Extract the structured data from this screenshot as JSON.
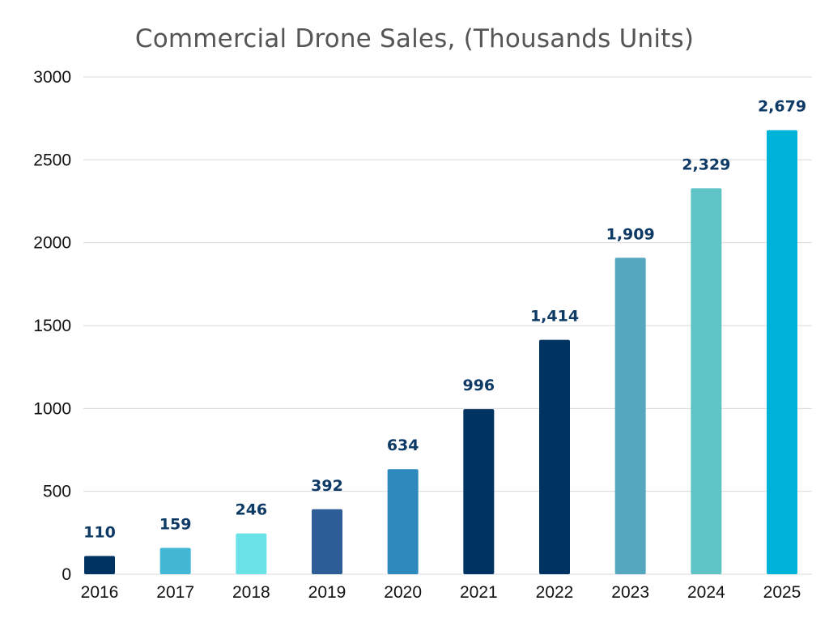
{
  "chart_data": {
    "type": "bar",
    "title": "Commercial Drone Sales, (Thousands Units)",
    "xlabel": "",
    "ylabel": "",
    "categories": [
      "2016",
      "2017",
      "2018",
      "2019",
      "2020",
      "2021",
      "2022",
      "2023",
      "2024",
      "2025"
    ],
    "values": [
      110,
      159,
      246,
      392,
      634,
      996,
      1414,
      1909,
      2329,
      2679
    ],
    "value_labels": [
      "110",
      "159",
      "246",
      "392",
      "634",
      "996",
      "1,414",
      "1,909",
      "2,329",
      "2,679"
    ],
    "bar_colors": [
      "#003361",
      "#42B7D6",
      "#6AE3E8",
      "#2E5E98",
      "#2E8ABD",
      "#003361",
      "#003361",
      "#55A7BF",
      "#5EC4C6",
      "#00B3D9"
    ],
    "ylim": [
      0,
      3000
    ],
    "yticks": [
      "0",
      "500",
      "1000",
      "1500",
      "2000",
      "2500",
      "3000"
    ],
    "grid": true,
    "colors": {
      "grid": "#D9D9D9",
      "data_label": "#0E3A66",
      "title": "#555555",
      "tick": "#111111"
    }
  }
}
